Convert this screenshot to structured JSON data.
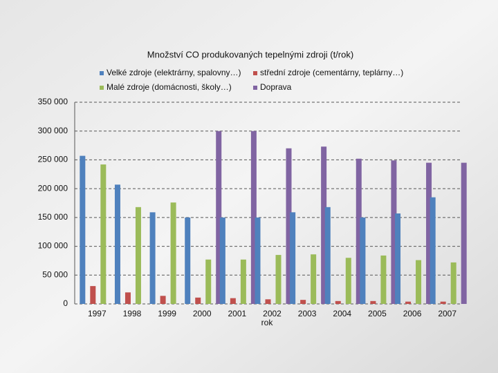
{
  "chart_data": {
    "type": "bar",
    "title": "Množství CO produkovaných tepelnými zdroji (t/rok)",
    "x_label": "rok",
    "categories": [
      "1997",
      "1998",
      "1999",
      "2000",
      "2001",
      "2002",
      "2003",
      "2004",
      "2005",
      "2006",
      "2007"
    ],
    "series": [
      {
        "name": "Velké zdroje (elektrárny, spalovny…)",
        "color": "#4f81bd",
        "values": [
          257000,
          207000,
          159000,
          150000,
          150000,
          150000,
          159000,
          168000,
          150000,
          157000,
          185000
        ]
      },
      {
        "name": "střední zdroje (cementárny, teplárny…)",
        "color": "#c0504d",
        "values": [
          31000,
          20000,
          14000,
          11000,
          10000,
          8000,
          7000,
          5000,
          5000,
          4000,
          4000
        ]
      },
      {
        "name": "Malé zdroje (domácnosti, školy…)",
        "color": "#9bbb59",
        "values": [
          242000,
          168000,
          176000,
          77000,
          77000,
          85000,
          86000,
          80000,
          84000,
          76000,
          72000
        ]
      },
      {
        "name": "Doprava",
        "color": "#8064a2",
        "values": [
          null,
          null,
          null,
          300000,
          300000,
          270000,
          273000,
          252000,
          249000,
          245000,
          245000
        ]
      }
    ],
    "ylim": [
      0,
      350000
    ],
    "yticks": [
      0,
      {
        "value": 50000,
        "label": "50 000"
      },
      {
        "value": 100000,
        "label": "100 000"
      },
      {
        "value": 150000,
        "label": "150 000"
      },
      {
        "value": 200000,
        "label": "200 000"
      },
      {
        "value": 250000,
        "label": "250 000"
      },
      {
        "value": 300000,
        "label": "300 000"
      },
      {
        "value": 350000,
        "label": "350 000"
      }
    ],
    "grid": true
  }
}
